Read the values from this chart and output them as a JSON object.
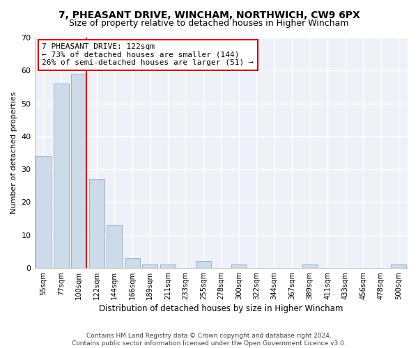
{
  "title1": "7, PHEASANT DRIVE, WINCHAM, NORTHWICH, CW9 6PX",
  "title2": "Size of property relative to detached houses in Higher Wincham",
  "xlabel": "Distribution of detached houses by size in Higher Wincham",
  "ylabel": "Number of detached properties",
  "categories": [
    "55sqm",
    "77sqm",
    "100sqm",
    "122sqm",
    "144sqm",
    "166sqm",
    "189sqm",
    "211sqm",
    "233sqm",
    "255sqm",
    "278sqm",
    "300sqm",
    "322sqm",
    "344sqm",
    "367sqm",
    "389sqm",
    "411sqm",
    "433sqm",
    "456sqm",
    "478sqm",
    "500sqm"
  ],
  "values": [
    34,
    56,
    59,
    27,
    13,
    3,
    1,
    1,
    0,
    2,
    0,
    1,
    0,
    0,
    0,
    1,
    0,
    0,
    0,
    0,
    1
  ],
  "bar_color": "#cddaea",
  "bar_edge_color": "#9ab0c8",
  "highlight_line_color": "#cc0000",
  "annotation_text": "7 PHEASANT DRIVE: 122sqm\n← 73% of detached houses are smaller (144)\n26% of semi-detached houses are larger (51) →",
  "annotation_box_color": "#ffffff",
  "annotation_box_edge_color": "#cc0000",
  "ylim": [
    0,
    70
  ],
  "yticks": [
    0,
    10,
    20,
    30,
    40,
    50,
    60,
    70
  ],
  "footer": "Contains HM Land Registry data © Crown copyright and database right 2024.\nContains public sector information licensed under the Open Government Licence v3.0.",
  "bg_color": "#ffffff",
  "plot_bg_color": "#eef2f8",
  "grid_color": "#ffffff"
}
